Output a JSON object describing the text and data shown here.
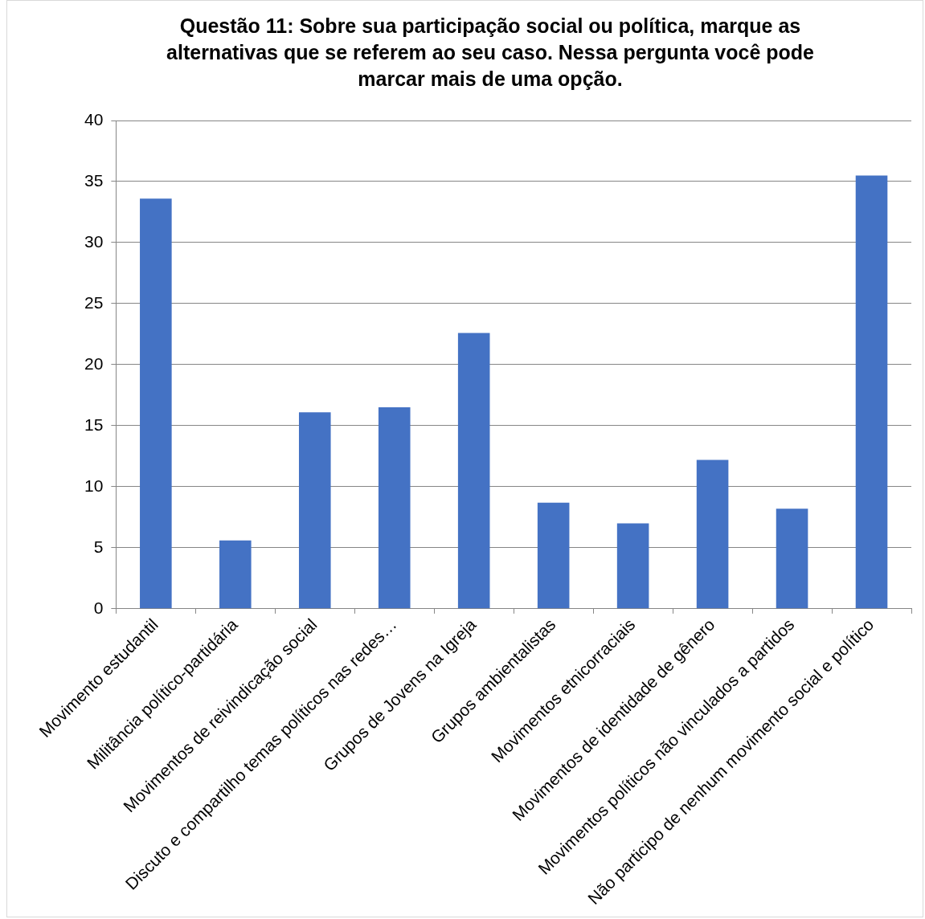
{
  "chart_data": {
    "type": "bar",
    "title": "Questão 11: Sobre sua participação social ou política, marque as alternativas que se referem ao seu caso. Nessa pergunta você pode marcar mais de uma opção.",
    "categories": [
      "Movimento estudantil",
      "Militância político-partidária",
      "Movimentos de reivindicação social",
      "Discuto e compartilho temas políticos nas redes…",
      "Grupos de Jovens na Igreja",
      "Grupos ambientalistas",
      "Movimentos etnicorraciais",
      "Movimentos de identidade de gênero",
      "Movimentos políticos não vinculados a partidos",
      "Não participo de nenhum movimento social e político"
    ],
    "values": [
      33.6,
      5.6,
      16.1,
      16.5,
      22.6,
      8.7,
      7.0,
      12.2,
      8.2,
      35.5
    ],
    "color": "#4472c4",
    "ylim": [
      0,
      40
    ],
    "yticks": [
      0,
      5,
      10,
      15,
      20,
      25,
      30,
      35,
      40
    ],
    "grid": "y",
    "legend": false
  }
}
